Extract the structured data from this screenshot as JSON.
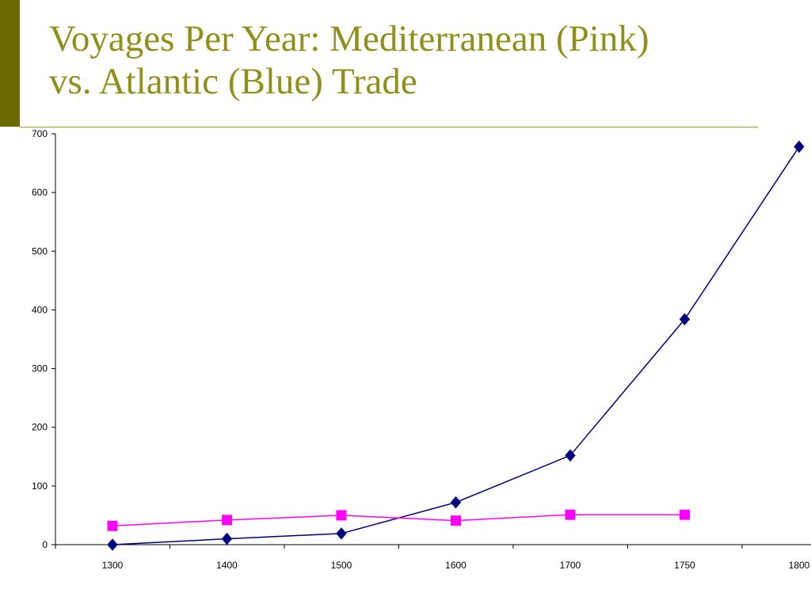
{
  "slide": {
    "title_line1": "Voyages Per Year: Mediterranean (Pink)",
    "title_line2": "vs. Atlantic (Blue) Trade"
  },
  "chart_data": {
    "type": "line",
    "title": "Voyages Per Year: Mediterranean (Pink) vs. Atlantic (Blue) Trade",
    "xlabel": "",
    "ylabel": "",
    "categories": [
      "1300",
      "1400",
      "1500",
      "1600",
      "1700",
      "1750",
      "1800"
    ],
    "y_ticks": [
      "0",
      "100",
      "200",
      "300",
      "400",
      "500",
      "600",
      "700"
    ],
    "ylim": [
      0,
      700
    ],
    "grid": false,
    "legend": "none",
    "series": [
      {
        "color": "#000080",
        "marker": "diamond",
        "values": [
          0,
          10,
          19,
          72,
          152,
          384,
          678
        ]
      },
      {
        "color": "#ff00ff",
        "marker": "square",
        "values": [
          32,
          42,
          50,
          41,
          51,
          51,
          null
        ]
      }
    ]
  },
  "colors": {
    "title": "#8f8f1a",
    "side_bar": "#6b6b00",
    "axis": "#000000"
  }
}
